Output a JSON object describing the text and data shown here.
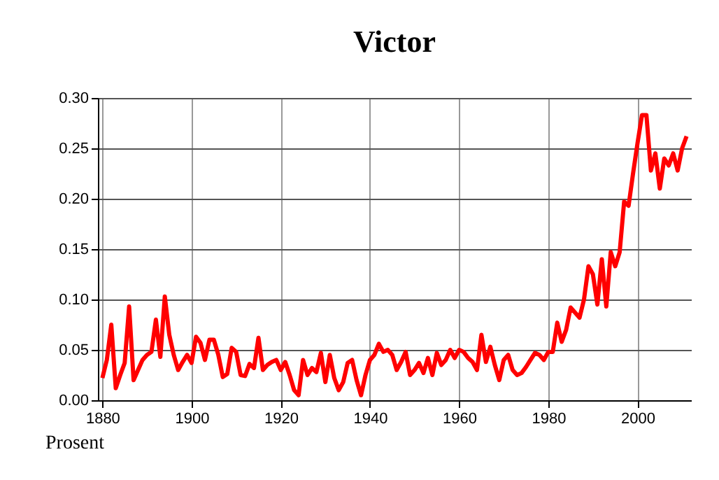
{
  "chart_data": {
    "type": "line",
    "title": "Victor",
    "ylabel": "Prosent",
    "x": [
      1880,
      1881,
      1882,
      1883,
      1884,
      1885,
      1886,
      1887,
      1888,
      1889,
      1890,
      1891,
      1892,
      1893,
      1894,
      1895,
      1896,
      1897,
      1898,
      1899,
      1900,
      1901,
      1902,
      1903,
      1904,
      1905,
      1906,
      1907,
      1908,
      1909,
      1910,
      1911,
      1912,
      1913,
      1914,
      1915,
      1916,
      1917,
      1918,
      1919,
      1920,
      1921,
      1922,
      1923,
      1924,
      1925,
      1926,
      1927,
      1928,
      1929,
      1930,
      1931,
      1932,
      1933,
      1934,
      1935,
      1936,
      1937,
      1938,
      1939,
      1940,
      1941,
      1942,
      1943,
      1944,
      1945,
      1946,
      1947,
      1948,
      1949,
      1950,
      1951,
      1952,
      1953,
      1954,
      1955,
      1956,
      1957,
      1958,
      1959,
      1960,
      1961,
      1962,
      1963,
      1964,
      1965,
      1966,
      1967,
      1968,
      1969,
      1970,
      1971,
      1972,
      1973,
      1974,
      1975,
      1976,
      1977,
      1978,
      1979,
      1980,
      1981,
      1982,
      1983,
      1984,
      1985,
      1986,
      1987,
      1988,
      1989,
      1990,
      1991,
      1992,
      1993,
      1994,
      1995,
      1996,
      1997,
      1998,
      1999,
      2000,
      2001,
      2002,
      2003,
      2004,
      2005,
      2006,
      2007,
      2008,
      2009,
      2010,
      2011
    ],
    "series": [
      {
        "color": "#ff0000",
        "values": [
          0.022,
          0.04,
          0.075,
          0.012,
          0.025,
          0.037,
          0.093,
          0.02,
          0.03,
          0.04,
          0.045,
          0.048,
          0.08,
          0.043,
          0.103,
          0.065,
          0.045,
          0.03,
          0.038,
          0.045,
          0.037,
          0.063,
          0.057,
          0.04,
          0.06,
          0.06,
          0.045,
          0.023,
          0.026,
          0.052,
          0.048,
          0.025,
          0.024,
          0.036,
          0.032,
          0.062,
          0.03,
          0.035,
          0.038,
          0.04,
          0.03,
          0.038,
          0.025,
          0.01,
          0.005,
          0.04,
          0.025,
          0.032,
          0.028,
          0.047,
          0.018,
          0.045,
          0.022,
          0.01,
          0.018,
          0.037,
          0.04,
          0.02,
          0.005,
          0.025,
          0.04,
          0.045,
          0.056,
          0.048,
          0.05,
          0.045,
          0.03,
          0.038,
          0.048,
          0.025,
          0.03,
          0.037,
          0.027,
          0.042,
          0.025,
          0.047,
          0.035,
          0.04,
          0.05,
          0.042,
          0.05,
          0.048,
          0.042,
          0.038,
          0.03,
          0.065,
          0.038,
          0.053,
          0.035,
          0.02,
          0.04,
          0.045,
          0.03,
          0.025,
          0.027,
          0.033,
          0.04,
          0.047,
          0.045,
          0.04,
          0.048,
          0.048,
          0.077,
          0.058,
          0.07,
          0.092,
          0.087,
          0.082,
          0.1,
          0.133,
          0.125,
          0.095,
          0.14,
          0.093,
          0.147,
          0.133,
          0.147,
          0.197,
          0.193,
          0.225,
          0.255,
          0.283,
          0.283,
          0.228,
          0.245,
          0.21,
          0.24,
          0.233,
          0.245,
          0.228,
          0.25,
          0.262
        ]
      }
    ],
    "xlim": [
      1879,
      2012
    ],
    "xticks": [
      1880,
      1900,
      1920,
      1940,
      1960,
      1980,
      2000
    ],
    "ylim": [
      0,
      0.3
    ],
    "yticks": [
      {
        "value": 0,
        "label": "0.00"
      },
      {
        "value": 0.05,
        "label": "0.05"
      },
      {
        "value": 0.1,
        "label": "0.10"
      },
      {
        "value": 0.15,
        "label": "0.15"
      },
      {
        "value": 0.2,
        "label": "0.20"
      },
      {
        "value": 0.25,
        "label": "0.25"
      },
      {
        "value": 0.3,
        "label": "0.30"
      }
    ],
    "grid": true,
    "line_style": "solid",
    "marker": "none"
  }
}
